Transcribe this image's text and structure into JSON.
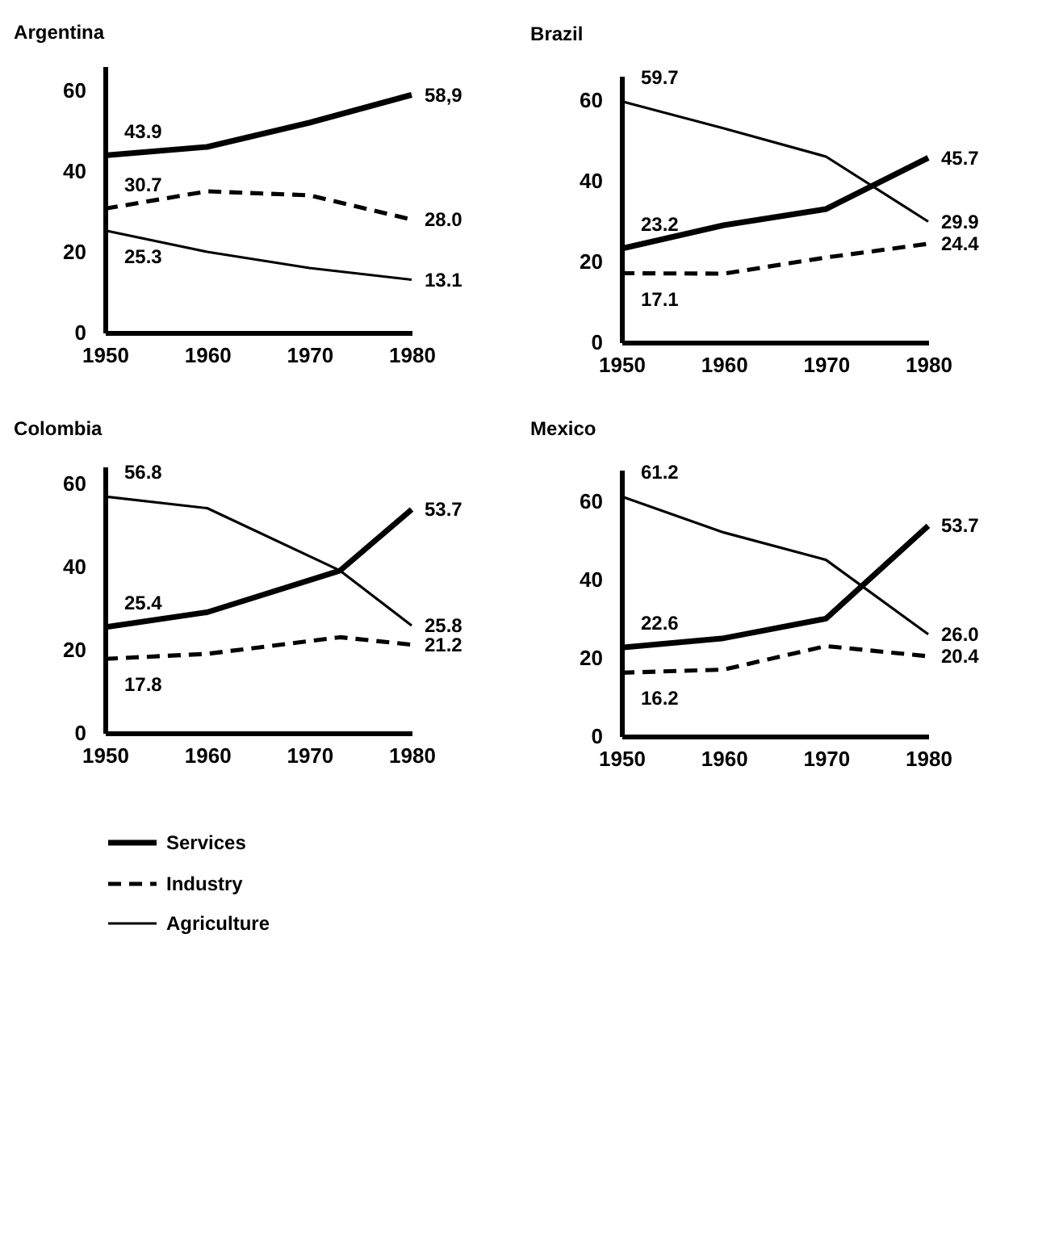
{
  "chart_data": [
    {
      "type": "line",
      "title": "Argentina",
      "x": [
        1950,
        1960,
        1970,
        1980
      ],
      "xlim": [
        1950,
        1980
      ],
      "xticks": [
        1950,
        1960,
        1970,
        1980
      ],
      "ylim": [
        0,
        66
      ],
      "yticks": [
        0,
        20,
        40,
        60
      ],
      "grid": false,
      "series": [
        {
          "color": "#000000",
          "line_style": "solid",
          "values": [
            43.9,
            46,
            52,
            58.9
          ],
          "value_labels": [
            "43.9",
            null,
            null,
            "58,9"
          ]
        },
        {
          "color": "#000000",
          "line_style": "dashed",
          "values": [
            30.7,
            35,
            34,
            28.0
          ],
          "value_labels": [
            "30.7",
            null,
            null,
            "28.0"
          ]
        },
        {
          "color": "#000000",
          "line_style": "solid",
          "values": [
            25.3,
            20,
            16,
            13.1
          ],
          "value_labels": [
            "25.3",
            null,
            null,
            "13.1"
          ]
        }
      ]
    },
    {
      "type": "line",
      "title": "Brazil",
      "x": [
        1950,
        1960,
        1970,
        1980
      ],
      "xlim": [
        1950,
        1980
      ],
      "xticks": [
        1950,
        1960,
        1970,
        1980
      ],
      "ylim": [
        0,
        66
      ],
      "yticks": [
        0,
        20,
        40,
        60
      ],
      "grid": false,
      "series": [
        {
          "color": "#000000",
          "line_style": "solid",
          "values": [
            23.2,
            29,
            33,
            45.7
          ],
          "value_labels": [
            "23.2",
            null,
            null,
            "45.7"
          ]
        },
        {
          "color": "#000000",
          "line_style": "dashed",
          "values": [
            17.1,
            17,
            21,
            24.4
          ],
          "value_labels": [
            "17.1",
            null,
            null,
            "24.4"
          ]
        },
        {
          "color": "#000000",
          "line_style": "solid",
          "values": [
            59.7,
            53,
            46,
            29.9
          ],
          "value_labels": [
            "59.7",
            null,
            null,
            "29.9"
          ]
        }
      ]
    },
    {
      "type": "line",
      "title": "Colombia",
      "x": [
        1950,
        1960,
        1973,
        1980
      ],
      "xlim": [
        1950,
        1980
      ],
      "xticks": [
        1950,
        1960,
        1970,
        1980
      ],
      "ylim": [
        0,
        64
      ],
      "yticks": [
        0,
        20,
        40,
        60
      ],
      "grid": false,
      "legend": "bottom",
      "series": [
        {
          "name": "Services",
          "color": "#000000",
          "line_style": "solid",
          "values": [
            25.4,
            29,
            39,
            53.7
          ],
          "value_labels": [
            "25.4",
            null,
            null,
            "53.7"
          ]
        },
        {
          "name": "Industry",
          "color": "#000000",
          "line_style": "dashed",
          "values": [
            17.8,
            19,
            23,
            21.2
          ],
          "value_labels": [
            "17.8",
            null,
            null,
            "21.2"
          ]
        },
        {
          "name": "Agriculture",
          "color": "#000000",
          "line_style": "solid",
          "values": [
            56.8,
            54,
            39,
            25.8
          ],
          "value_labels": [
            "56.8",
            null,
            null,
            "25.8"
          ]
        }
      ]
    },
    {
      "type": "line",
      "title": "Mexico",
      "x": [
        1950,
        1960,
        1970,
        1980
      ],
      "xlim": [
        1950,
        1980
      ],
      "xticks": [
        1950,
        1960,
        1970,
        1980
      ],
      "ylim": [
        0,
        68
      ],
      "yticks": [
        0,
        20,
        40,
        60
      ],
      "grid": false,
      "series": [
        {
          "color": "#000000",
          "line_style": "solid",
          "values": [
            22.6,
            25,
            30,
            53.7
          ],
          "value_labels": [
            "22.6",
            null,
            null,
            "53.7"
          ]
        },
        {
          "color": "#000000",
          "line_style": "dashed",
          "values": [
            16.2,
            17,
            23,
            20.4
          ],
          "value_labels": [
            "16.2",
            null,
            null,
            "20.4"
          ]
        },
        {
          "color": "#000000",
          "line_style": "solid",
          "values": [
            61.2,
            52,
            45,
            26.0
          ],
          "value_labels": [
            "61.2",
            null,
            null,
            "26.0"
          ]
        }
      ]
    }
  ]
}
